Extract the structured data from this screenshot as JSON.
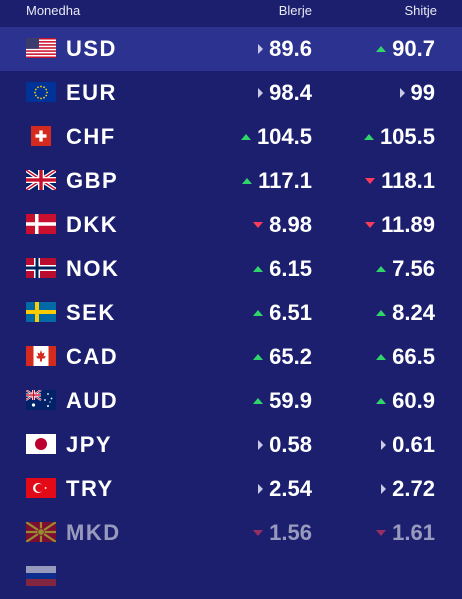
{
  "header": {
    "currency": "Monedha",
    "buy": "Blerje",
    "sell": "Shitje"
  },
  "rows": [
    {
      "code": "USD",
      "buy": "89.6",
      "buy_trend": "flat",
      "sell": "90.7",
      "sell_trend": "up",
      "flag": "us-flag-icon"
    },
    {
      "code": "EUR",
      "buy": "98.4",
      "buy_trend": "flat",
      "sell": "99",
      "sell_trend": "flat",
      "flag": "eu-flag-icon"
    },
    {
      "code": "CHF",
      "buy": "104.5",
      "buy_trend": "up",
      "sell": "105.5",
      "sell_trend": "up",
      "flag": "ch-flag-icon"
    },
    {
      "code": "GBP",
      "buy": "117.1",
      "buy_trend": "up",
      "sell": "118.1",
      "sell_trend": "down",
      "flag": "gb-flag-icon"
    },
    {
      "code": "DKK",
      "buy": "8.98",
      "buy_trend": "down",
      "sell": "11.89",
      "sell_trend": "down",
      "flag": "dk-flag-icon"
    },
    {
      "code": "NOK",
      "buy": "6.15",
      "buy_trend": "up",
      "sell": "7.56",
      "sell_trend": "up",
      "flag": "no-flag-icon"
    },
    {
      "code": "SEK",
      "buy": "6.51",
      "buy_trend": "up",
      "sell": "8.24",
      "sell_trend": "up",
      "flag": "se-flag-icon"
    },
    {
      "code": "CAD",
      "buy": "65.2",
      "buy_trend": "up",
      "sell": "66.5",
      "sell_trend": "up",
      "flag": "ca-flag-icon"
    },
    {
      "code": "AUD",
      "buy": "59.9",
      "buy_trend": "up",
      "sell": "60.9",
      "sell_trend": "up",
      "flag": "au-flag-icon"
    },
    {
      "code": "JPY",
      "buy": "0.58",
      "buy_trend": "flat",
      "sell": "0.61",
      "sell_trend": "flat",
      "flag": "jp-flag-icon"
    },
    {
      "code": "TRY",
      "buy": "2.54",
      "buy_trend": "flat",
      "sell": "2.72",
      "sell_trend": "flat",
      "flag": "tr-flag-icon"
    },
    {
      "code": "MKD",
      "buy": "1.56",
      "buy_trend": "down",
      "sell": "1.61",
      "sell_trend": "down",
      "flag": "mk-flag-icon"
    }
  ],
  "colors": {
    "background": "#1b1f6e",
    "selected_row": "#2c3290",
    "up": "#2fd46a",
    "down": "#ff3b5c",
    "flat": "#c9cbe6"
  }
}
